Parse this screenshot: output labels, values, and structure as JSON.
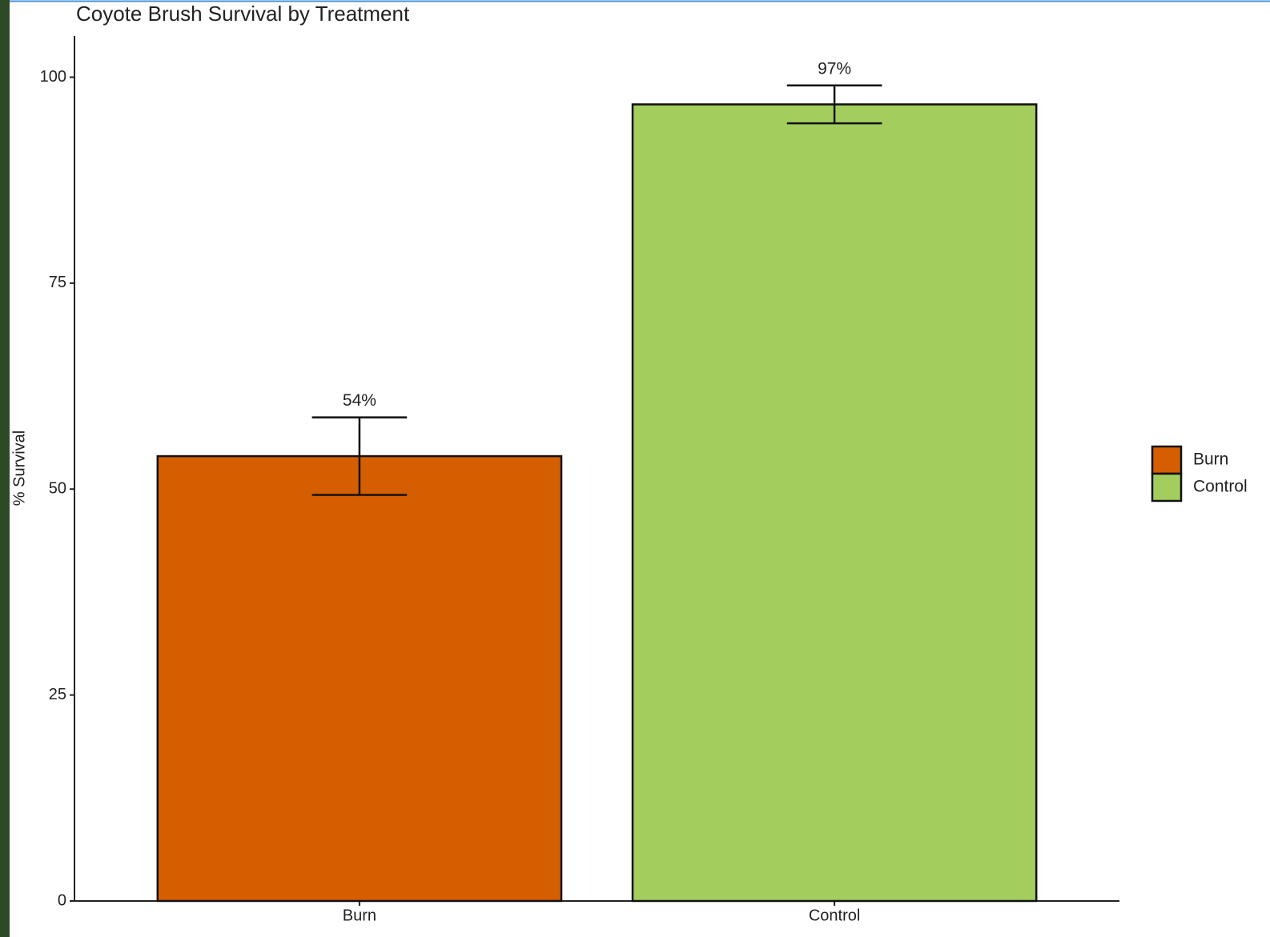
{
  "chart_data": {
    "type": "bar",
    "title": "Coyote Brush Survival by Treatment",
    "y_label": "% Survival",
    "categories": [
      "Burn",
      "Control"
    ],
    "values": [
      54,
      96.7
    ],
    "value_labels": [
      "54%",
      "97%"
    ],
    "errors": [
      4.7,
      2.3
    ],
    "colors": [
      "#d55e00",
      "#a3cd5d"
    ],
    "ylim": [
      0,
      105
    ],
    "yticks": [
      0,
      25,
      50,
      75,
      100
    ],
    "grid": false,
    "legend": "right"
  }
}
